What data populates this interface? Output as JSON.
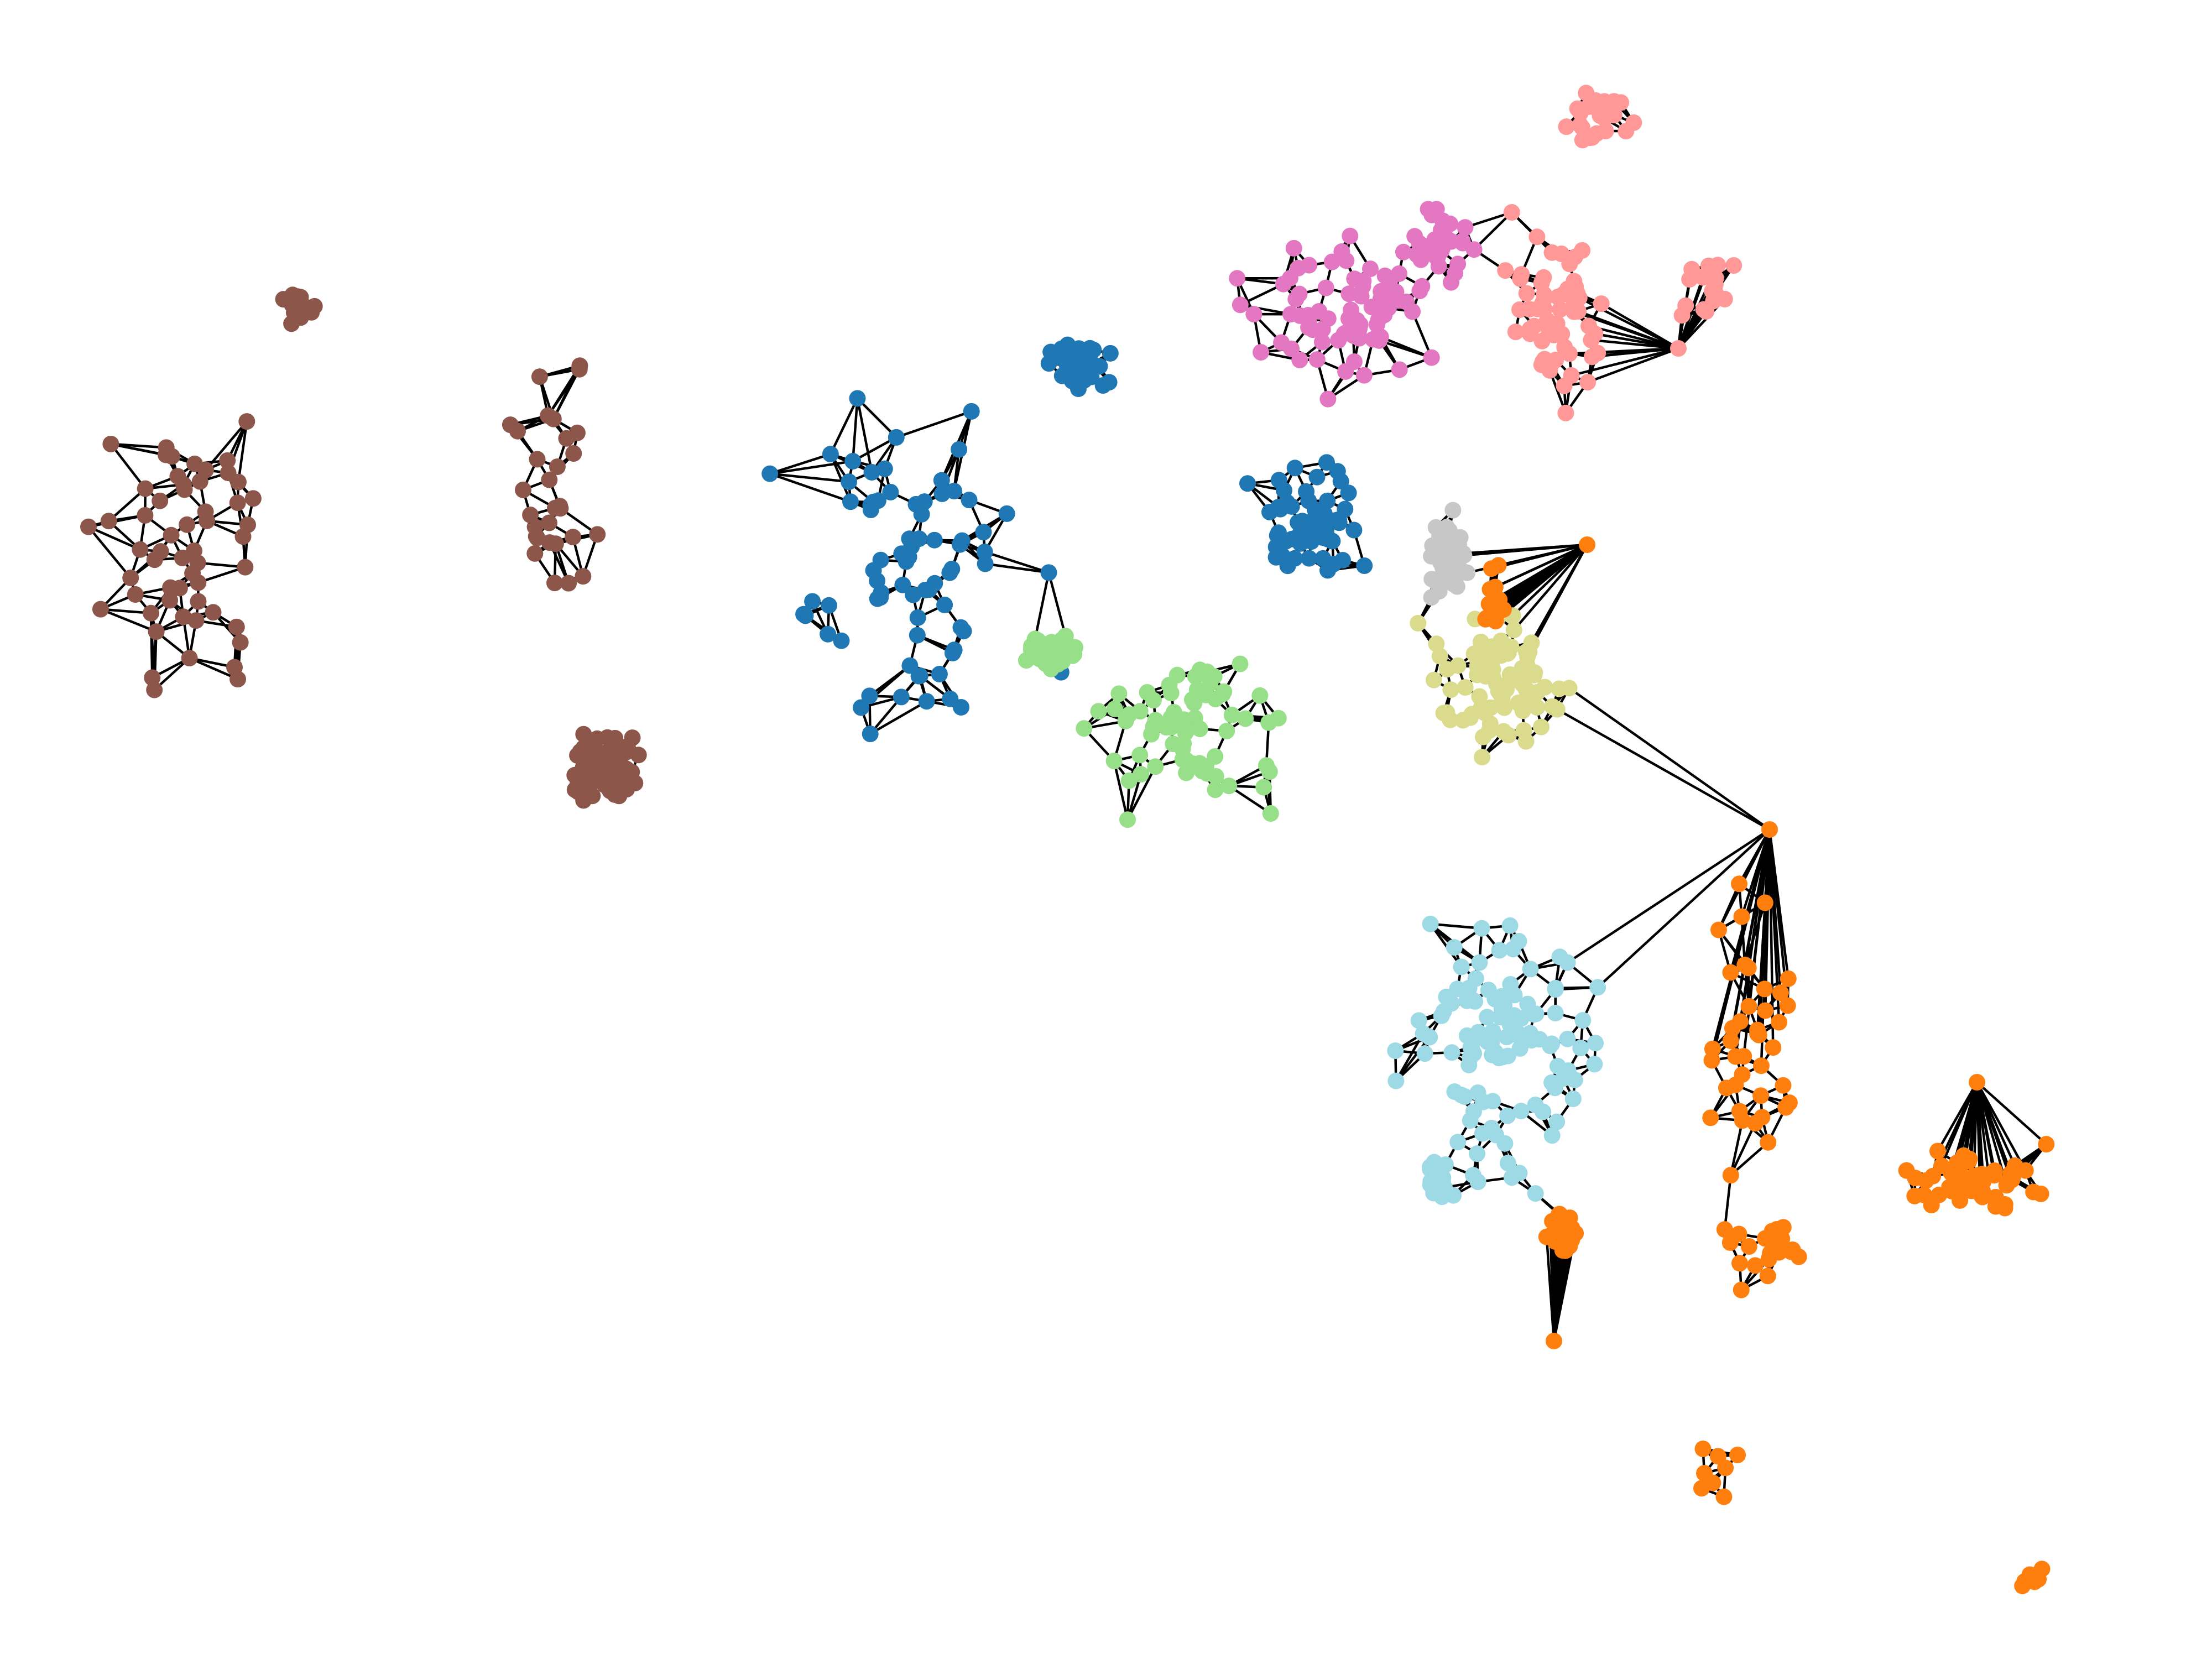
{
  "figure": {
    "type": "graph",
    "description_visible_text": "",
    "node_count_approx": 1600,
    "edges_style": "black straight lines",
    "node_style": "filled circles",
    "background": "#ffffff"
  },
  "palette": {
    "brown": "#8c564b",
    "blue": "#1f77b4",
    "light_green": "#98df8a",
    "pink": "#e377c2",
    "salmon": "#ff9896",
    "gray": "#c7c7c7",
    "olive": "#dbdb8d",
    "light_blue": "#9edae5",
    "orange": "#ff7f0e"
  },
  "clusters": [
    {
      "id": "west",
      "color_key": "brown"
    },
    {
      "id": "central-west",
      "color_key": "blue"
    },
    {
      "id": "central",
      "color_key": "light_green"
    },
    {
      "id": "north",
      "color_key": "pink"
    },
    {
      "id": "northeast",
      "color_key": "salmon"
    },
    {
      "id": "metro-core",
      "color_key": "gray"
    },
    {
      "id": "metro-south",
      "color_key": "olive"
    },
    {
      "id": "southeast",
      "color_key": "light_blue"
    },
    {
      "id": "coast-cape",
      "color_key": "orange"
    }
  ]
}
